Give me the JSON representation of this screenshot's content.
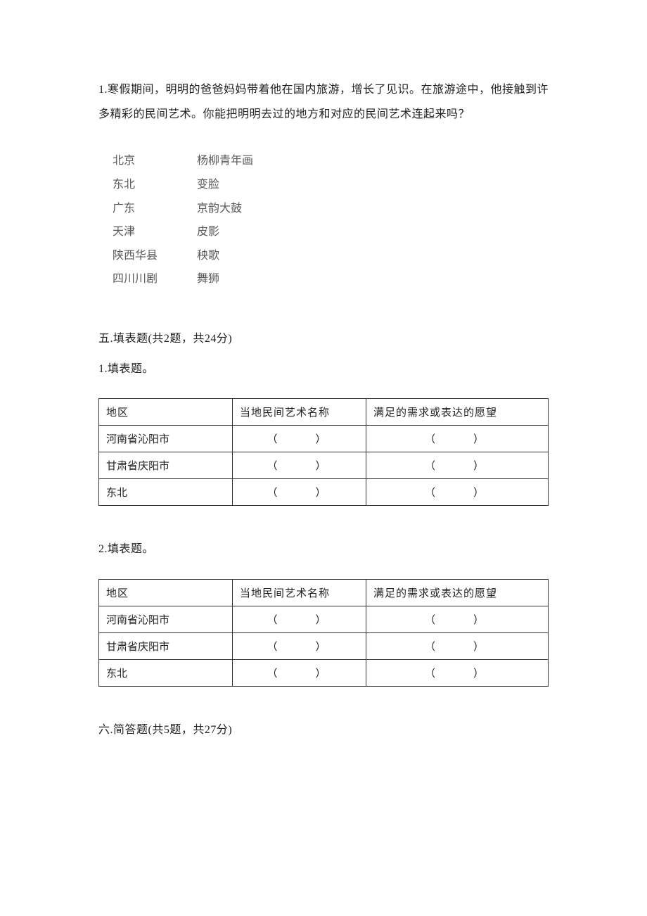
{
  "q1": {
    "prefix": "1.",
    "text": "寒假期间，明明的爸爸妈妈带着他在国内旅游，增长了见识。在旅游途中，他接触到许多精彩的民间艺术。你能把明明去过的地方和对应的民间艺术连起来吗？"
  },
  "matching": {
    "rows": [
      {
        "left": "北京",
        "right": "杨柳青年画"
      },
      {
        "left": "东北",
        "right": "变脸"
      },
      {
        "left": "广东",
        "right": "京韵大鼓"
      },
      {
        "left": "天津",
        "right": "皮影"
      },
      {
        "left": "陕西华县",
        "right": "秧歌"
      },
      {
        "left": "四川川剧",
        "right": "舞狮"
      }
    ]
  },
  "section5": {
    "title": "五.填表题(共2题，共24分)"
  },
  "tableQuestion1": {
    "label": "1.填表题。"
  },
  "tableQuestion2": {
    "label": "2.填表题。"
  },
  "tableHeaders": {
    "region": "地区",
    "artName": "当地民间艺术名称",
    "wish": "满足的需求或表达的愿望"
  },
  "tableRows": [
    {
      "region": "河南省沁阳市",
      "art": "（　　）",
      "wish": "（　　）"
    },
    {
      "region": "甘肃省庆阳市",
      "art": "（　　）",
      "wish": "（　　）"
    },
    {
      "region": "东北",
      "art": "（　　）",
      "wish": "（　　）"
    }
  ],
  "section6": {
    "title": "六.简答题(共5题，共27分)"
  },
  "colors": {
    "text": "#222222",
    "matchText": "#5a5a5a",
    "border": "#333333",
    "background": "#ffffff"
  },
  "typography": {
    "bodyFontSize": 16,
    "tableFontSize": 15,
    "lineHeight": 2.2,
    "fontFamily": "SimSun"
  }
}
